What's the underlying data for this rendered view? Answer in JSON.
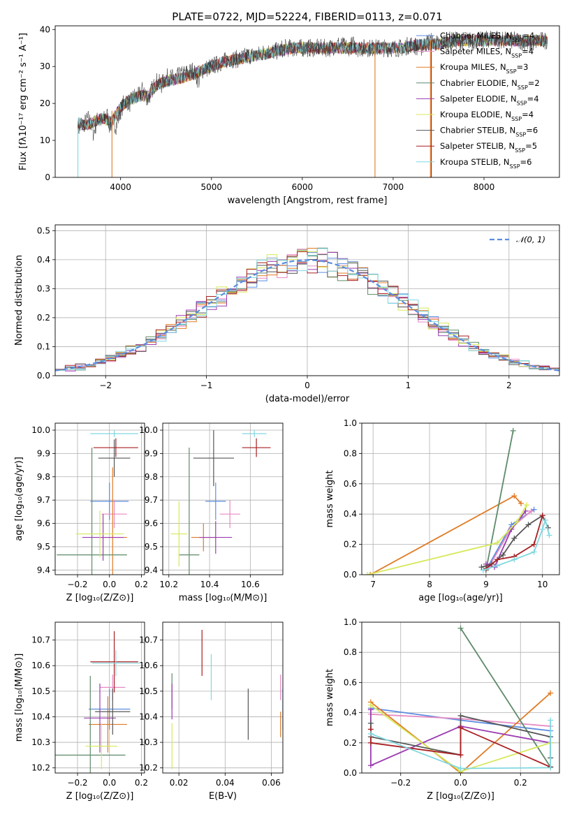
{
  "figure": {
    "title": "PLATE=0722, MJD=52224, FIBERID=0113, z=0.071"
  },
  "colors": {
    "Chabrier MILES": "#5b8de0",
    "Salpeter MILES": "#e78ac3",
    "Kroupa MILES": "#e07b24",
    "Chabrier ELODIE": "#5f8a6a",
    "Salpeter ELODIE": "#9b3bb0",
    "Kroupa ELODIE": "#d7e85a",
    "Chabrier STELIB": "#555555",
    "Salpeter STELIB": "#a81f22",
    "Kroupa STELIB": "#80d8e0"
  },
  "chart_data": [
    {
      "id": "spectrum",
      "type": "line",
      "xlabel": "wavelength [Angstrom, rest frame]",
      "ylabel": "Flux [fλ10⁻¹⁷ erg cm⁻² s⁻¹ A⁻¹]",
      "xlim": [
        3280,
        8830
      ],
      "ylim": [
        0,
        41
      ],
      "xticks": [
        4000,
        5000,
        6000,
        7000,
        8000
      ],
      "yticks": [
        0,
        10,
        20,
        30,
        40
      ],
      "grid": false,
      "legend": "top-right",
      "legend_entries": [
        {
          "name": "Chabrier MILES",
          "nssp": "4"
        },
        {
          "name": "Salpeter MILES",
          "nssp": "4"
        },
        {
          "name": "Kroupa MILES",
          "nssp": "3"
        },
        {
          "name": "Chabrier ELODIE",
          "nssp": "2"
        },
        {
          "name": "Salpeter ELODIE",
          "nssp": "4"
        },
        {
          "name": "Kroupa ELODIE",
          "nssp": "4"
        },
        {
          "name": "Chabrier STELIB",
          "nssp": "6"
        },
        {
          "name": "Salpeter STELIB",
          "nssp": "5"
        },
        {
          "name": "Kroupa STELIB",
          "nssp": "6"
        }
      ],
      "nssp_label": "N",
      "nssp_sub": "SSP",
      "observed_color": "#333333",
      "observed": {
        "x": [
          3530,
          3580,
          3650,
          3700,
          3750,
          3800,
          3850,
          3880,
          3920,
          3950,
          4000,
          4050,
          4100,
          4150,
          4200,
          4250,
          4300,
          4350,
          4400,
          4450,
          4500,
          4600,
          4700,
          4800,
          4860,
          4900,
          5000,
          5100,
          5200,
          5300,
          5400,
          5500,
          5600,
          5700,
          5800,
          5900,
          6000,
          6100,
          6200,
          6300,
          6400,
          6500,
          6563,
          6600,
          6700,
          6800,
          6900,
          7000,
          7100,
          7200,
          7300,
          7400,
          7500,
          7600,
          7700,
          7800,
          7900,
          8000,
          8100,
          8200,
          8300,
          8400,
          8500,
          8600,
          8700
        ],
        "y": [
          13,
          14,
          16,
          12,
          16,
          15,
          17,
          14,
          15,
          14,
          18,
          21,
          20,
          22,
          22,
          24,
          21,
          24,
          26,
          25,
          27,
          27,
          28,
          29,
          26,
          29,
          30,
          31,
          32,
          32,
          33,
          33,
          34,
          34,
          35,
          35,
          35,
          35,
          35,
          35,
          36,
          35,
          36,
          35,
          35,
          35,
          35,
          35,
          35,
          36,
          35,
          37,
          36,
          37,
          37,
          37,
          37,
          37,
          38,
          37,
          37,
          37,
          36,
          37,
          37
        ]
      },
      "model": {
        "x": [
          3530,
          3600,
          3700,
          3800,
          3900,
          4000,
          4100,
          4200,
          4300,
          4400,
          4500,
          4700,
          4900,
          5100,
          5300,
          5500,
          5700,
          5900,
          6100,
          6300,
          6500,
          6700,
          6900,
          7100,
          7300,
          7500,
          7700,
          7900,
          8100,
          8300,
          8500,
          8700
        ],
        "y": [
          15,
          14,
          15,
          16,
          15,
          19,
          21,
          22,
          22,
          25,
          26,
          27,
          29,
          31,
          32,
          33,
          34,
          35,
          35,
          35,
          35,
          35,
          35,
          35,
          36,
          36,
          37,
          37,
          37,
          37,
          37,
          37
        ]
      },
      "dropouts": [
        {
          "color": "#e07b24",
          "x": 3905,
          "y_from": 18,
          "y_to": 0
        },
        {
          "color": "#e07b24",
          "x": 6800,
          "y_from": 36,
          "y_to": 0
        },
        {
          "color": "#a81f22",
          "x": 7420,
          "y_from": 37,
          "y_to": 0
        },
        {
          "color": "#e07b24",
          "x": 7410,
          "y_from": 37,
          "y_to": 0
        },
        {
          "color": "#80d8e0",
          "x": 3530,
          "y_from": 13,
          "y_to": 0
        }
      ]
    },
    {
      "id": "residuals",
      "type": "line",
      "xlabel": "(data-model)/error",
      "ylabel": "Normed distribution",
      "xlim": [
        -2.5,
        2.5
      ],
      "ylim": [
        0,
        0.52
      ],
      "xticks": [
        -2,
        -1,
        0,
        1,
        2
      ],
      "yticks": [
        0.0,
        0.1,
        0.2,
        0.3,
        0.4,
        0.5
      ],
      "grid": true,
      "legend": "top-right",
      "normal_label": "𝒩(0, 1)",
      "normal_color": "#5b8de0",
      "bin_width": 0.1
    },
    {
      "id": "age_vs_Z",
      "type": "scatter",
      "xlabel": "Z [log₁₀(Z/Z⊙)]",
      "ylabel": "age  [log₁₀(age/yr)]",
      "xlim": [
        -0.34,
        0.22
      ],
      "ylim": [
        9.38,
        10.03
      ],
      "xticks": [
        -0.2,
        0.0,
        0.2
      ],
      "yticks": [
        9.4,
        9.5,
        9.6,
        9.7,
        9.8,
        9.9,
        10.0
      ],
      "grid": true,
      "points": [
        {
          "s": "Chabrier MILES",
          "x": 0.0,
          "xe": 0.12,
          "y": 9.695,
          "ye": 0.08
        },
        {
          "s": "Salpeter MILES",
          "x": 0.03,
          "xe": 0.08,
          "y": 9.64,
          "ye": 0.06
        },
        {
          "s": "Kroupa MILES",
          "x": 0.02,
          "xe": 0.09,
          "y": 9.54,
          "ye": 0.3
        },
        {
          "s": "Chabrier ELODIE",
          "x": -0.11,
          "xe": 0.22,
          "y": 9.465,
          "ye": 0.46
        },
        {
          "s": "Salpeter ELODIE",
          "x": -0.04,
          "xe": 0.13,
          "y": 9.54,
          "ye": 0.1
        },
        {
          "s": "Kroupa ELODIE",
          "x": -0.06,
          "xe": 0.15,
          "y": 9.555,
          "ye": 0.1
        },
        {
          "s": "Chabrier STELIB",
          "x": 0.03,
          "xe": 0.1,
          "y": 9.88,
          "ye": 0.08
        },
        {
          "s": "Salpeter STELIB",
          "x": 0.04,
          "xe": 0.14,
          "y": 9.925,
          "ye": 0.04
        },
        {
          "s": "Kroupa STELIB",
          "x": 0.03,
          "xe": 0.15,
          "y": 9.985,
          "ye": 0.015
        }
      ]
    },
    {
      "id": "age_vs_mass",
      "type": "scatter",
      "xlabel": "mass [log₁₀(M/M⊙)]",
      "ylabel": "",
      "xlim": [
        10.17,
        10.76
      ],
      "ylim": [
        9.38,
        10.03
      ],
      "xticks": [
        10.2,
        10.4,
        10.6
      ],
      "yticks": [
        9.4,
        9.5,
        9.6,
        9.7,
        9.8,
        9.9,
        10.0
      ],
      "grid": true,
      "points": [
        {
          "s": "Chabrier MILES",
          "x": 10.43,
          "xe": 0.05,
          "y": 9.695,
          "ye": 0.08
        },
        {
          "s": "Salpeter MILES",
          "x": 10.5,
          "xe": 0.05,
          "y": 9.64,
          "ye": 0.06
        },
        {
          "s": "Kroupa MILES",
          "x": 10.37,
          "xe": 0.06,
          "y": 9.54,
          "ye": 0.06
        },
        {
          "s": "Chabrier ELODIE",
          "x": 10.3,
          "xe": 0.05,
          "y": 9.465,
          "ye": 0.46
        },
        {
          "s": "Salpeter ELODIE",
          "x": 10.43,
          "xe": 0.08,
          "y": 9.54,
          "ye": 0.07
        },
        {
          "s": "Kroupa ELODIE",
          "x": 10.25,
          "xe": 0.04,
          "y": 9.555,
          "ye": 0.14
        },
        {
          "s": "Chabrier STELIB",
          "x": 10.42,
          "xe": 0.1,
          "y": 9.88,
          "ye": 0.12
        },
        {
          "s": "Salpeter STELIB",
          "x": 10.63,
          "xe": 0.07,
          "y": 9.925,
          "ye": 0.04
        },
        {
          "s": "Kroupa STELIB",
          "x": 10.62,
          "xe": 0.06,
          "y": 9.985,
          "ye": 0.015
        }
      ]
    },
    {
      "id": "weight_vs_age",
      "type": "line",
      "xlabel": "age  [log₁₀(age/yr)]",
      "ylabel": "mass weight",
      "xlim": [
        6.8,
        10.3
      ],
      "ylim": [
        0,
        1.0
      ],
      "xticks": [
        7,
        8,
        9,
        10
      ],
      "yticks": [
        0.0,
        0.2,
        0.4,
        0.6,
        0.8,
        1.0
      ],
      "grid": true,
      "series": [
        {
          "s": "Chabrier MILES",
          "x": [
            9.0,
            9.45,
            9.85
          ],
          "y": [
            0.03,
            0.33,
            0.43
          ]
        },
        {
          "s": "Salpeter MILES",
          "x": [
            9.05,
            9.45,
            9.8
          ],
          "y": [
            0.05,
            0.31,
            0.42
          ]
        },
        {
          "s": "Kroupa MILES",
          "x": [
            6.95,
            9.5,
            9.62
          ],
          "y": [
            0.0,
            0.52,
            0.47
          ]
        },
        {
          "s": "Chabrier ELODIE",
          "x": [
            9.0,
            9.48
          ],
          "y": [
            0.03,
            0.95
          ]
        },
        {
          "s": "Salpeter ELODIE",
          "x": [
            9.0,
            9.15,
            9.45,
            9.7
          ],
          "y": [
            0.07,
            0.05,
            0.3,
            0.42
          ]
        },
        {
          "s": "Kroupa ELODIE",
          "x": [
            6.9,
            9.2,
            9.55,
            9.72
          ],
          "y": [
            0.0,
            0.21,
            0.35,
            0.46
          ]
        },
        {
          "s": "Chabrier STELIB",
          "x": [
            8.92,
            9.1,
            9.3,
            9.5,
            9.75,
            10.0,
            10.1
          ],
          "y": [
            0.05,
            0.07,
            0.13,
            0.24,
            0.33,
            0.39,
            0.31
          ]
        },
        {
          "s": "Salpeter STELIB",
          "x": [
            9.0,
            9.2,
            9.5,
            9.85,
            10.0
          ],
          "y": [
            0.04,
            0.1,
            0.12,
            0.2,
            0.39
          ]
        },
        {
          "s": "Kroupa STELIB",
          "x": [
            8.95,
            9.2,
            9.5,
            9.85,
            10.0,
            10.05,
            10.12
          ],
          "y": [
            0.03,
            0.06,
            0.1,
            0.15,
            0.3,
            0.36,
            0.26
          ]
        }
      ]
    },
    {
      "id": "mass_vs_Z",
      "type": "scatter",
      "xlabel": "Z [log₁₀(Z/Z⊙)]",
      "ylabel": "mass [log₁₀(M/M⊙)]",
      "xlim": [
        -0.34,
        0.22
      ],
      "ylim": [
        10.18,
        10.77
      ],
      "xticks": [
        -0.2,
        0.0,
        0.2
      ],
      "yticks": [
        10.2,
        10.3,
        10.4,
        10.5,
        10.6,
        10.7
      ],
      "grid": true,
      "points": [
        {
          "s": "Chabrier MILES",
          "x": 0.0,
          "xe": 0.13,
          "y": 10.43,
          "ye": 0.08
        },
        {
          "s": "Salpeter MILES",
          "x": 0.02,
          "xe": 0.08,
          "y": 10.515,
          "ye": 0.05
        },
        {
          "s": "Kroupa MILES",
          "x": -0.01,
          "xe": 0.12,
          "y": 10.37,
          "ye": 0.11
        },
        {
          "s": "Chabrier ELODIE",
          "x": -0.12,
          "xe": 0.22,
          "y": 10.25,
          "ye": 0.31
        },
        {
          "s": "Salpeter ELODIE",
          "x": -0.06,
          "xe": 0.1,
          "y": 10.395,
          "ye": 0.135
        },
        {
          "s": "Kroupa ELODIE",
          "x": -0.05,
          "xe": 0.1,
          "y": 10.285,
          "ye": 0.09
        },
        {
          "s": "Chabrier STELIB",
          "x": 0.02,
          "xe": 0.11,
          "y": 10.42,
          "ye": 0.09
        },
        {
          "s": "Salpeter STELIB",
          "x": 0.03,
          "xe": 0.15,
          "y": 10.615,
          "ye": 0.12
        },
        {
          "s": "Kroupa STELIB",
          "x": 0.04,
          "xe": 0.15,
          "y": 10.61,
          "ye": 0.05
        }
      ]
    },
    {
      "id": "mass_vs_ebv",
      "type": "scatter",
      "xlabel": "E(B-V)",
      "ylabel": "",
      "xlim": [
        0.013,
        0.065
      ],
      "ylim": [
        10.18,
        10.77
      ],
      "xticks": [
        0.02,
        0.04,
        0.06
      ],
      "yticks": [
        10.2,
        10.3,
        10.4,
        10.5,
        10.6,
        10.7
      ],
      "grid": true,
      "points": [
        {
          "s": "Chabrier MILES",
          "x": 0.065,
          "xe": 0,
          "y": 10.43,
          "ye": 0.08
        },
        {
          "s": "Salpeter MILES",
          "x": 0.064,
          "xe": 0,
          "y": 10.515,
          "ye": 0.05
        },
        {
          "s": "Kroupa MILES",
          "x": 0.064,
          "xe": 0,
          "y": 10.37,
          "ye": 0.05
        },
        {
          "s": "Chabrier ELODIE",
          "x": 0.017,
          "xe": 0,
          "y": 10.5,
          "ye": 0.07
        },
        {
          "s": "Salpeter ELODIE",
          "x": 0.017,
          "xe": 0,
          "y": 10.46,
          "ye": 0.07
        },
        {
          "s": "Kroupa ELODIE",
          "x": 0.017,
          "xe": 0,
          "y": 10.285,
          "ye": 0.09
        },
        {
          "s": "Chabrier STELIB",
          "x": 0.05,
          "xe": 0,
          "y": 10.41,
          "ye": 0.1
        },
        {
          "s": "Salpeter STELIB",
          "x": 0.03,
          "xe": 0,
          "y": 10.65,
          "ye": 0.09
        },
        {
          "s": "Kroupa STELIB",
          "x": 0.034,
          "xe": 0,
          "y": 10.555,
          "ye": 0.09
        }
      ]
    },
    {
      "id": "weight_vs_Z",
      "type": "line",
      "xlabel": "Z [log₁₀(Z/Z⊙)]",
      "ylabel": "mass weight",
      "xlim": [
        -0.33,
        0.33
      ],
      "ylim": [
        0,
        1.0
      ],
      "xticks": [
        -0.2,
        0.0,
        0.2
      ],
      "yticks": [
        0.0,
        0.2,
        0.4,
        0.6,
        0.8,
        1.0
      ],
      "grid": true,
      "series": [
        {
          "s": "Chabrier MILES",
          "x": [
            -0.3,
            0.0,
            0.3
          ],
          "y": [
            0.43,
            0.35,
            0.28
          ]
        },
        {
          "s": "Salpeter MILES",
          "x": [
            -0.3,
            0.0,
            0.3
          ],
          "y": [
            0.39,
            0.36,
            0.31
          ]
        },
        {
          "s": "Kroupa MILES",
          "x": [
            -0.3,
            0.0,
            0.3
          ],
          "y": [
            0.47,
            0.0,
            0.53
          ]
        },
        {
          "s": "Chabrier ELODIE",
          "x": [
            0.0,
            0.3
          ],
          "y": [
            0.96,
            0.04
          ]
        },
        {
          "s": "Salpeter ELODIE",
          "x": [
            -0.3,
            -0.3,
            0.0,
            0.3
          ],
          "y": [
            0.42,
            0.05,
            0.31,
            0.2
          ]
        },
        {
          "s": "Kroupa ELODIE",
          "x": [
            -0.3,
            0.0,
            0.3
          ],
          "y": [
            0.45,
            0.01,
            0.2
          ]
        },
        {
          "s": "Chabrier STELIB",
          "x": [
            -0.3,
            -0.3,
            0.0,
            0.0,
            0.3,
            0.3
          ],
          "y": [
            0.33,
            0.24,
            0.12,
            0.38,
            0.24,
            0.1
          ]
        },
        {
          "s": "Salpeter STELIB",
          "x": [
            -0.3,
            -0.3,
            0.0,
            0.0,
            0.3
          ],
          "y": [
            0.29,
            0.2,
            0.12,
            0.3,
            0.04
          ]
        },
        {
          "s": "Kroupa STELIB",
          "x": [
            -0.3,
            0.0,
            0.0,
            0.3,
            0.3
          ],
          "y": [
            0.26,
            0.03,
            0.03,
            0.035,
            0.35
          ]
        }
      ]
    }
  ]
}
